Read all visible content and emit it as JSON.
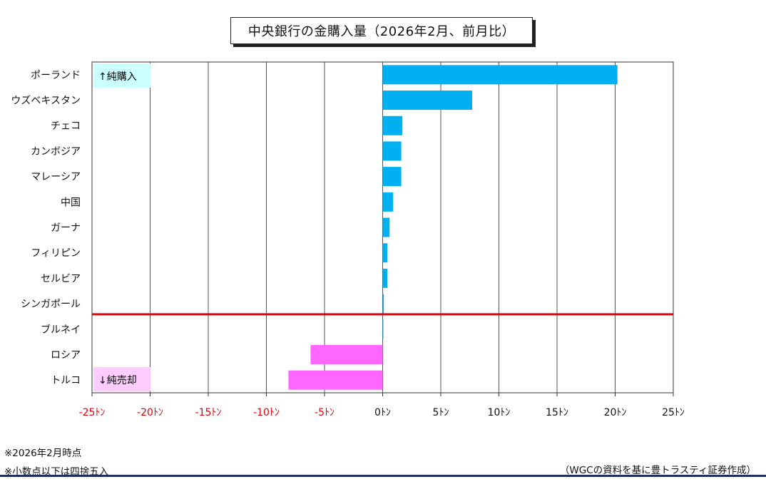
{
  "title": "中央銀行の金購入量（2026年2月、前月比）",
  "notes": [
    "※2026年2月時点",
    "※小数点以下は四捨五入"
  ],
  "source": "（WGCの資料を基に豊トラスティ証券作成）",
  "labels": {
    "buy": "↑純購入",
    "sell": "↓純売却"
  },
  "colors": {
    "positive_bar": "#00b0f0",
    "negative_bar": "#ff66ff",
    "divider_line": "#e0000a",
    "buy_label_bg": "#ccffff",
    "sell_label_bg": "#ffccff",
    "negative_tick_text": "#e0000a",
    "tick_text": "#111111",
    "grid": "#555555"
  },
  "chart_data": {
    "type": "bar",
    "orientation": "horizontal",
    "title": "中央銀行の金購入量（2026年2月、前月比）",
    "xlabel": "",
    "ylabel": "",
    "unit": "トン",
    "xlim": [
      -25,
      25
    ],
    "tick_values": [
      -25,
      -20,
      -15,
      -10,
      -5,
      0,
      5,
      10,
      15,
      20,
      25
    ],
    "tick_labels": [
      "-25ﾄﾝ",
      "-20ﾄﾝ",
      "-15ﾄﾝ",
      "-10ﾄﾝ",
      "-5ﾄﾝ",
      "0ﾄﾝ",
      "5ﾄﾝ",
      "10ﾄﾝ",
      "15ﾄﾝ",
      "20ﾄﾝ",
      "25ﾄﾝ"
    ],
    "grid": "vertical",
    "categories": [
      "ポーランド",
      "ウズベキスタン",
      "チェコ",
      "カンボジア",
      "マレーシア",
      "中国",
      "ガーナ",
      "フィリピン",
      "セルビア",
      "シンガポール",
      "ブルネイ",
      "ロシア",
      "トルコ"
    ],
    "values": [
      20.2,
      7.7,
      1.7,
      1.6,
      1.6,
      0.9,
      0.6,
      0.4,
      0.4,
      0.1,
      0.0,
      -6.2,
      -8.1
    ]
  }
}
